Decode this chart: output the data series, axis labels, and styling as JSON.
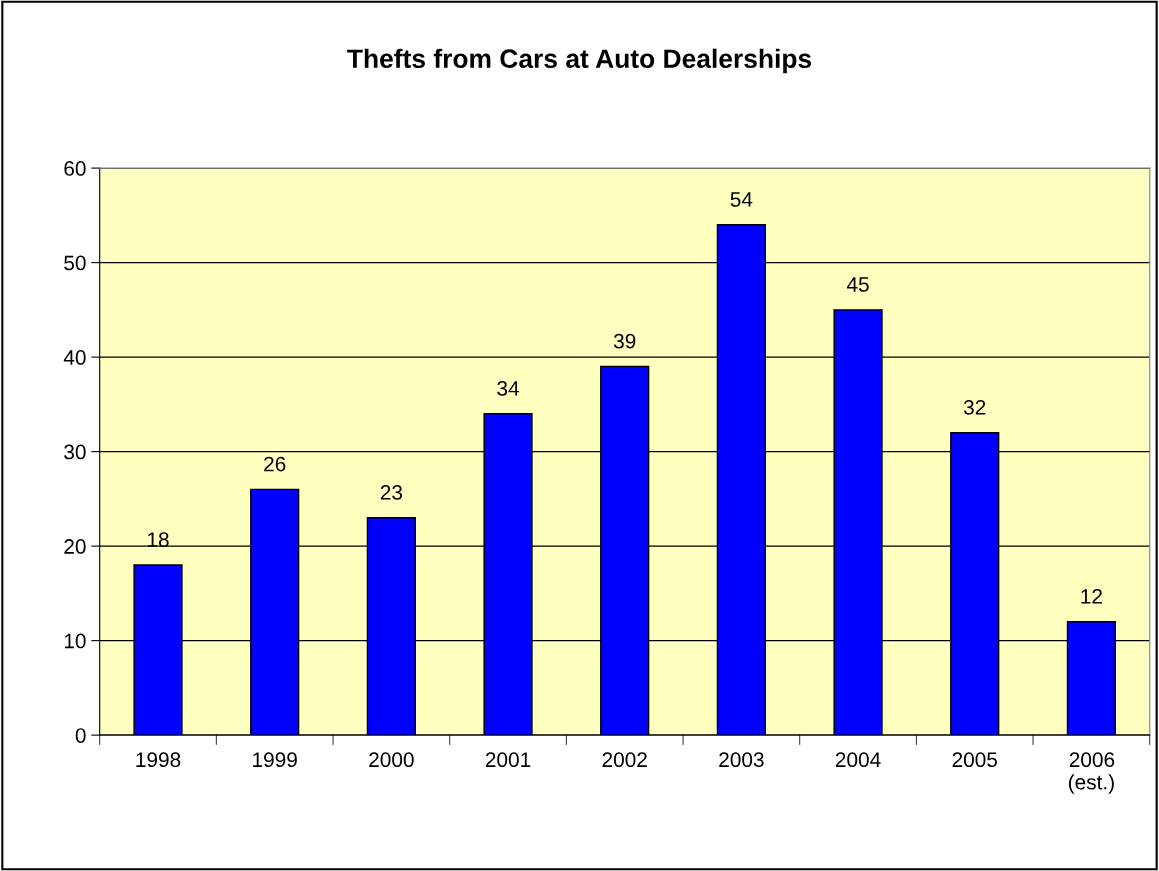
{
  "chart_data": {
    "type": "bar",
    "title": "Thefts from Cars at Auto Dealerships",
    "categories": [
      "1998",
      "1999",
      "2000",
      "2001",
      "2002",
      "2003",
      "2004",
      "2005",
      "2006\n(est.)"
    ],
    "values": [
      18,
      26,
      23,
      34,
      39,
      54,
      45,
      32,
      12
    ],
    "color": "#0000ff",
    "ylim": [
      0,
      60
    ],
    "yticks": [
      0,
      10,
      20,
      30,
      40,
      50,
      60
    ],
    "grid": "y",
    "data_labels": true,
    "legend": false
  }
}
